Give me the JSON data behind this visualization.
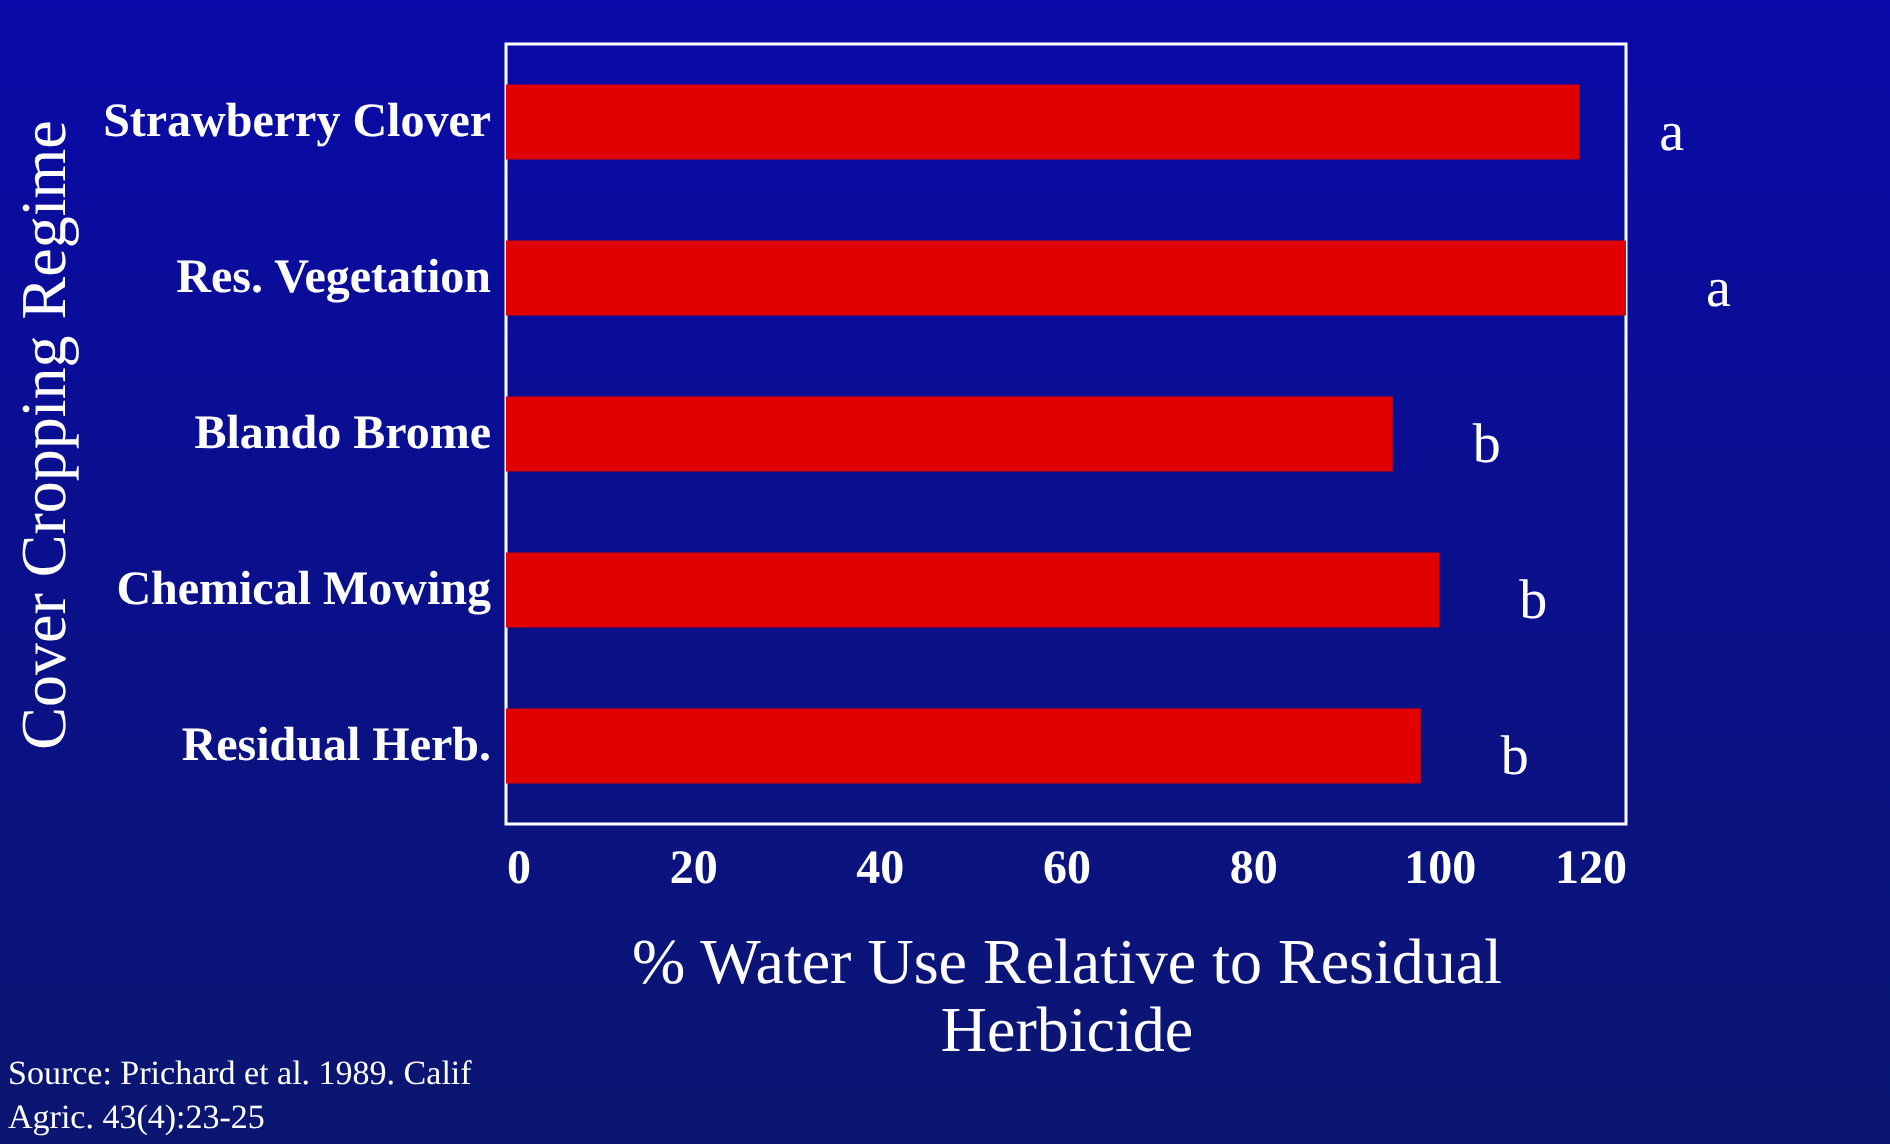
{
  "chart_data": {
    "type": "bar",
    "orientation": "horizontal",
    "categories": [
      "Strawberry Clover",
      "Res. Vegetation",
      "Blando Brome",
      "Chemical Mowing",
      "Residual Herb."
    ],
    "values": [
      115,
      120,
      95,
      100,
      98
    ],
    "color": "#e00000",
    "xlim": [
      0,
      120
    ],
    "xticks": [
      0,
      20,
      40,
      60,
      80,
      100,
      120
    ],
    "grid": false,
    "xlabel": "% Water Use Relative to Residual Herbicide",
    "ylabel": "Cover Cropping Regime",
    "value_labels": [
      "a",
      "a",
      "b",
      "b",
      "b"
    ],
    "annotations": [
      "Source: Prichard et al. 1989. Calif Agric. 43(4):23-25"
    ]
  }
}
